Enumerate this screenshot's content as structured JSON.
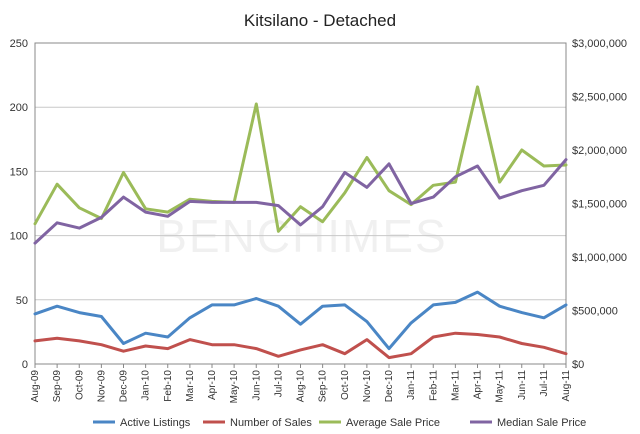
{
  "chart_data": {
    "type": "line",
    "title": "Kitsilano - Detached",
    "watermark": "BENCHIMES",
    "x": [
      "Aug-09",
      "Sep-09",
      "Oct-09",
      "Nov-09",
      "Dec-09",
      "Jan-10",
      "Feb-10",
      "Mar-10",
      "Apr-10",
      "May-10",
      "Jun-10",
      "Jul-10",
      "Aug-10",
      "Sep-10",
      "Oct-10",
      "Nov-10",
      "Dec-10",
      "Jan-11",
      "Feb-11",
      "Mar-11",
      "Apr-11",
      "May-11",
      "Jun-11",
      "Jul-11",
      "Aug-11"
    ],
    "y_left": {
      "ticks": [
        "0",
        "50",
        "100",
        "150",
        "200",
        "250"
      ],
      "range": [
        0,
        250
      ]
    },
    "y_right": {
      "ticks": [
        "$0",
        "$500,000",
        "$1,000,000",
        "$1,500,000",
        "$2,000,000",
        "$2,500,000",
        "$3,000,000"
      ],
      "range": [
        0,
        3000000
      ]
    },
    "grid": true,
    "legend_position": "bottom",
    "series": [
      {
        "name": "Active Listings",
        "axis": "left",
        "color": "#4a86c5",
        "values": [
          39,
          45,
          40,
          37,
          16,
          24,
          21,
          36,
          46,
          46,
          51,
          45,
          31,
          45,
          46,
          33,
          12,
          32,
          46,
          48,
          56,
          45,
          40,
          36,
          46
        ]
      },
      {
        "name": "Number of Sales",
        "axis": "left",
        "color": "#c0504d",
        "values": [
          18,
          20,
          18,
          15,
          10,
          14,
          12,
          19,
          15,
          15,
          12,
          6,
          11,
          15,
          8,
          19,
          5,
          8,
          21,
          24,
          23,
          21,
          16,
          13,
          8
        ]
      },
      {
        "name": "Average Sale Price",
        "axis": "right",
        "color": "#9bbb59",
        "values": [
          1310000,
          1680000,
          1460000,
          1360000,
          1790000,
          1450000,
          1420000,
          1540000,
          1520000,
          1510000,
          2430000,
          1240000,
          1470000,
          1330000,
          1600000,
          1930000,
          1620000,
          1490000,
          1670000,
          1700000,
          2590000,
          1700000,
          2000000,
          1850000,
          1860000
        ]
      },
      {
        "name": "Median Sale Price",
        "axis": "right",
        "color": "#8064a2",
        "values": [
          1130000,
          1320000,
          1270000,
          1370000,
          1560000,
          1420000,
          1380000,
          1520000,
          1510000,
          1510000,
          1510000,
          1480000,
          1300000,
          1470000,
          1790000,
          1650000,
          1870000,
          1500000,
          1560000,
          1750000,
          1850000,
          1550000,
          1620000,
          1670000,
          1910000
        ]
      }
    ]
  }
}
